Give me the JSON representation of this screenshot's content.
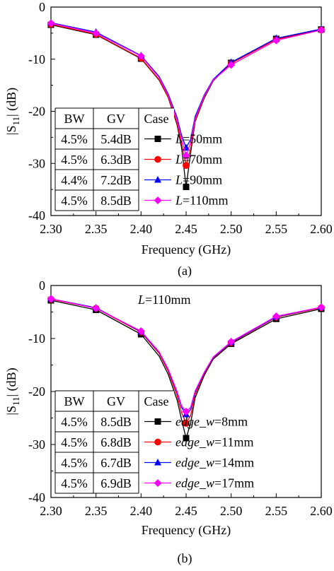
{
  "colors": {
    "black": "#000000",
    "red": "#ff0000",
    "blue": "#0000ff",
    "magenta": "#ff00ff"
  },
  "chart_data": [
    {
      "type": "line",
      "caption": "(a)",
      "xlabel": "Frequency (GHz)",
      "ylabel_main": "|S",
      "ylabel_sub": "11",
      "ylabel_tail": "| (dB)",
      "xlim": [
        2.3,
        2.6
      ],
      "ylim": [
        -40,
        0
      ],
      "xticks": [
        "2.30",
        "2.35",
        "2.40",
        "2.45",
        "2.50",
        "2.55",
        "2.60"
      ],
      "yticks": [
        "0",
        "-10",
        "-20",
        "-30",
        "-40"
      ],
      "annotation": "",
      "table": {
        "headers": [
          "BW",
          "GV",
          "Case"
        ],
        "rows": [
          [
            "4.5%",
            "5.4dB"
          ],
          [
            "4.5%",
            "6.3dB"
          ],
          [
            "4.4%",
            "7.2dB"
          ],
          [
            "4.5%",
            "8.5dB"
          ]
        ]
      },
      "legend": [
        {
          "var": "L",
          "eq": "=50mm",
          "color": "#000000",
          "marker": "square"
        },
        {
          "var": "L",
          "eq": "=70mm",
          "color": "#ff0000",
          "marker": "circle"
        },
        {
          "var": "L",
          "eq": "=90mm",
          "color": "#0000ff",
          "marker": "triangle"
        },
        {
          "var": "L",
          "eq": "=110mm",
          "color": "#ff00ff",
          "marker": "diamond"
        }
      ],
      "markers_x": [
        2.3,
        2.35,
        2.4,
        2.45,
        2.5,
        2.55,
        2.6
      ],
      "series": [
        {
          "name": "L=50mm",
          "color": "#000000",
          "marker": "square",
          "min": [
            2.45,
            -34.5
          ],
          "x": [
            2.3,
            2.35,
            2.4,
            2.42,
            2.43,
            2.44,
            2.445,
            2.45,
            2.455,
            2.46,
            2.47,
            2.48,
            2.5,
            2.55,
            2.6
          ],
          "y": [
            -3.4,
            -5.3,
            -9.9,
            -14.0,
            -17.3,
            -22.6,
            -27.0,
            -34.5,
            -28.0,
            -22.0,
            -17.5,
            -14.2,
            -10.7,
            -6.1,
            -4.3
          ]
        },
        {
          "name": "L=70mm",
          "color": "#ff0000",
          "marker": "circle",
          "min": [
            2.45,
            -30.4
          ],
          "x": [
            2.3,
            2.35,
            2.4,
            2.42,
            2.43,
            2.44,
            2.445,
            2.45,
            2.455,
            2.46,
            2.47,
            2.48,
            2.5,
            2.55,
            2.6
          ],
          "y": [
            -3.3,
            -5.2,
            -9.8,
            -13.9,
            -17.2,
            -22.3,
            -26.2,
            -30.4,
            -27.2,
            -21.8,
            -17.3,
            -14.1,
            -10.8,
            -6.2,
            -4.4
          ]
        },
        {
          "name": "L=90mm",
          "color": "#0000ff",
          "marker": "triangle",
          "min": [
            2.45,
            -27.0
          ],
          "x": [
            2.3,
            2.35,
            2.4,
            2.42,
            2.43,
            2.44,
            2.445,
            2.45,
            2.455,
            2.46,
            2.47,
            2.48,
            2.5,
            2.55,
            2.6
          ],
          "y": [
            -3.0,
            -4.8,
            -9.3,
            -13.3,
            -16.6,
            -21.2,
            -24.6,
            -27.0,
            -25.4,
            -21.0,
            -16.9,
            -13.9,
            -10.6,
            -6.0,
            -4.2
          ]
        },
        {
          "name": "L=110mm",
          "color": "#ff00ff",
          "marker": "diamond",
          "min": [
            2.45,
            -28.5
          ],
          "x": [
            2.3,
            2.35,
            2.4,
            2.42,
            2.43,
            2.44,
            2.445,
            2.45,
            2.455,
            2.46,
            2.47,
            2.48,
            2.5,
            2.55,
            2.6
          ],
          "y": [
            -3.1,
            -5.0,
            -9.4,
            -13.5,
            -16.9,
            -21.7,
            -25.2,
            -28.5,
            -26.0,
            -21.4,
            -17.1,
            -14.0,
            -11.1,
            -6.4,
            -4.4
          ]
        }
      ]
    },
    {
      "type": "line",
      "caption": "(b)",
      "xlabel": "Frequency (GHz)",
      "ylabel_main": "|S",
      "ylabel_sub": "11",
      "ylabel_tail": "| (dB)",
      "xlim": [
        2.3,
        2.6
      ],
      "ylim": [
        -40,
        0
      ],
      "xticks": [
        "2.30",
        "2.35",
        "2.40",
        "2.45",
        "2.50",
        "2.55",
        "2.60"
      ],
      "yticks": [
        "0",
        "-10",
        "-20",
        "-30",
        "-40"
      ],
      "annotation": "L=110mm",
      "table": {
        "headers": [
          "BW",
          "GV",
          "Case"
        ],
        "rows": [
          [
            "4.5%",
            "8.5dB"
          ],
          [
            "4.5%",
            "6.8dB"
          ],
          [
            "4.5%",
            "6.7dB"
          ],
          [
            "4.5%",
            "6.9dB"
          ]
        ]
      },
      "legend": [
        {
          "var": "edge_w",
          "eq": "=8mm",
          "color": "#000000",
          "marker": "square"
        },
        {
          "var": "edge_w",
          "eq": "=11mm",
          "color": "#ff0000",
          "marker": "circle"
        },
        {
          "var": "edge_w",
          "eq": "=14mm",
          "color": "#0000ff",
          "marker": "triangle"
        },
        {
          "var": "edge_w",
          "eq": "=17mm",
          "color": "#ff00ff",
          "marker": "diamond"
        }
      ],
      "markers_x": [
        2.3,
        2.35,
        2.4,
        2.45,
        2.5,
        2.55,
        2.6
      ],
      "series": [
        {
          "name": "edge_w=8mm",
          "color": "#000000",
          "marker": "square",
          "min": [
            2.45,
            -28.8
          ],
          "x": [
            2.3,
            2.35,
            2.4,
            2.42,
            2.43,
            2.44,
            2.445,
            2.45,
            2.455,
            2.46,
            2.47,
            2.48,
            2.5,
            2.55,
            2.6
          ],
          "y": [
            -2.8,
            -4.6,
            -9.2,
            -13.3,
            -16.7,
            -21.6,
            -25.3,
            -28.8,
            -26.0,
            -21.2,
            -17.0,
            -13.9,
            -11.0,
            -6.3,
            -4.4
          ]
        },
        {
          "name": "edge_w=11mm",
          "color": "#ff0000",
          "marker": "circle",
          "min": [
            2.45,
            -26.0
          ],
          "x": [
            2.3,
            2.35,
            2.4,
            2.42,
            2.43,
            2.44,
            2.445,
            2.45,
            2.455,
            2.46,
            2.47,
            2.48,
            2.5,
            2.55,
            2.6
          ],
          "y": [
            -2.6,
            -4.3,
            -8.8,
            -12.8,
            -16.1,
            -20.8,
            -24.0,
            -26.0,
            -24.5,
            -20.6,
            -16.7,
            -13.7,
            -10.8,
            -6.0,
            -4.2
          ]
        },
        {
          "name": "edge_w=14mm",
          "color": "#0000ff",
          "marker": "triangle",
          "min": [
            2.45,
            -24.3
          ],
          "x": [
            2.3,
            2.35,
            2.4,
            2.42,
            2.43,
            2.44,
            2.445,
            2.45,
            2.455,
            2.46,
            2.47,
            2.48,
            2.5,
            2.55,
            2.6
          ],
          "y": [
            -2.5,
            -4.2,
            -8.7,
            -12.6,
            -15.8,
            -20.2,
            -23.0,
            -24.3,
            -23.4,
            -20.1,
            -16.5,
            -13.6,
            -10.7,
            -5.9,
            -4.1
          ]
        },
        {
          "name": "edge_w=17mm",
          "color": "#ff00ff",
          "marker": "diamond",
          "min": [
            2.45,
            -23.8
          ],
          "x": [
            2.3,
            2.35,
            2.4,
            2.42,
            2.43,
            2.44,
            2.445,
            2.45,
            2.455,
            2.46,
            2.47,
            2.48,
            2.5,
            2.55,
            2.6
          ],
          "y": [
            -2.5,
            -4.3,
            -8.6,
            -12.5,
            -15.7,
            -20.0,
            -22.7,
            -23.8,
            -23.0,
            -19.9,
            -16.4,
            -13.5,
            -10.6,
            -5.8,
            -4.1
          ]
        }
      ]
    }
  ]
}
